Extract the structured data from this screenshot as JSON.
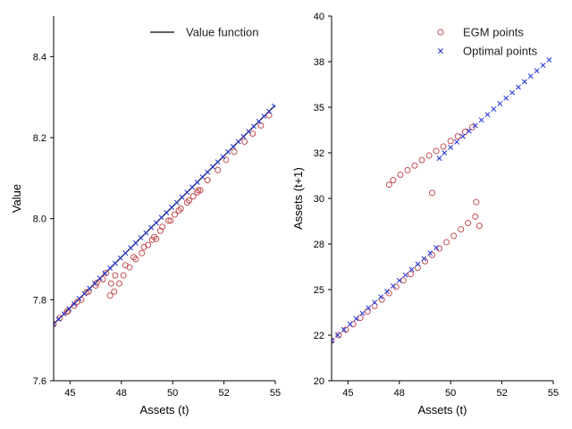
{
  "chart_data": [
    {
      "type": "line",
      "xlabel": "Assets (t)",
      "ylabel": "Value",
      "xlim": [
        44.2,
        55
      ],
      "ylim": [
        7.6,
        8.5
      ],
      "xticks": [
        "45",
        "48",
        "50",
        "52",
        "55"
      ],
      "xtick_values": [
        45,
        47.5,
        50,
        52.5,
        55
      ],
      "yticks": [
        "7.6",
        "7.8",
        "8.0",
        "8.2",
        "8.4"
      ],
      "ytick_values": [
        7.6,
        7.8,
        8.0,
        8.2,
        8.4
      ],
      "legend_position": "top-right",
      "series": [
        {
          "name": "Value function",
          "kind": "line",
          "color": "#000000",
          "x": [
            44.2,
            55
          ],
          "y": [
            7.74,
            8.28
          ]
        },
        {
          "kind": "circle",
          "color": "#c44e52",
          "x": [
            44.2,
            44.5,
            44.85,
            45.2,
            45.55,
            45.9,
            46.25,
            46.6,
            46.95,
            47.0,
            47.15,
            47.4,
            47.6,
            47.9,
            48.2,
            48.5,
            48.8,
            49.1,
            49.2,
            49.5,
            49.8,
            50.1,
            50.4,
            50.7,
            51.0,
            51.2,
            51.35,
            44.9,
            45.35,
            45.8,
            46.3,
            46.75,
            47.2,
            47.7,
            48.1,
            48.6,
            49.0,
            49.4,
            49.9,
            50.3,
            50.8,
            51.25,
            51.7,
            52.2,
            52.6,
            53.0,
            53.5,
            53.9,
            54.3,
            54.7
          ],
          "y": [
            7.74,
            7.755,
            7.77,
            7.785,
            7.8,
            7.82,
            7.835,
            7.85,
            7.81,
            7.84,
            7.82,
            7.84,
            7.86,
            7.88,
            7.9,
            7.915,
            7.935,
            7.955,
            7.95,
            7.98,
            7.995,
            8.01,
            8.025,
            8.04,
            8.055,
            8.065,
            8.07,
            7.772,
            7.795,
            7.818,
            7.842,
            7.866,
            7.86,
            7.885,
            7.905,
            7.93,
            7.948,
            7.97,
            7.995,
            8.02,
            8.045,
            8.07,
            8.095,
            8.12,
            8.145,
            8.165,
            8.19,
            8.21,
            8.23,
            8.255
          ]
        },
        {
          "kind": "x",
          "color": "#2030d8",
          "x": [
            44.2,
            44.45,
            44.7,
            44.95,
            45.2,
            45.45,
            45.7,
            45.95,
            46.2,
            46.45,
            46.7,
            46.95,
            47.2,
            47.45,
            47.7,
            47.95,
            48.2,
            48.45,
            48.7,
            48.95,
            49.2,
            49.45,
            49.7,
            49.95,
            50.2,
            50.45,
            50.7,
            50.95,
            51.2,
            51.45,
            51.7,
            51.95,
            52.2,
            52.45,
            52.7,
            52.95,
            53.2,
            53.45,
            53.7,
            53.95,
            54.2,
            54.45,
            54.7,
            54.95
          ],
          "y": [
            7.74,
            7.752,
            7.765,
            7.778,
            7.79,
            7.803,
            7.815,
            7.828,
            7.84,
            7.853,
            7.865,
            7.878,
            7.89,
            7.903,
            7.915,
            7.928,
            7.94,
            7.953,
            7.965,
            7.978,
            7.99,
            8.003,
            8.015,
            8.028,
            8.04,
            8.053,
            8.065,
            8.078,
            8.09,
            8.103,
            8.115,
            8.128,
            8.14,
            8.153,
            8.165,
            8.178,
            8.19,
            8.203,
            8.215,
            8.228,
            8.24,
            8.253,
            8.265,
            8.278
          ]
        }
      ]
    },
    {
      "type": "scatter",
      "xlabel": "Assets (t)",
      "ylabel": "Assets (t+1)",
      "xlim": [
        44.2,
        55
      ],
      "ylim": [
        20,
        40
      ],
      "xticks": [
        "45",
        "48",
        "50",
        "52",
        "55"
      ],
      "xtick_values": [
        45,
        47.5,
        50,
        52.5,
        55
      ],
      "yticks": [
        "20",
        "22",
        "25",
        "28",
        "30",
        "32",
        "35",
        "38",
        "40"
      ],
      "ytick_values": [
        20,
        22.5,
        25,
        27.5,
        30,
        32.5,
        35,
        37.5,
        40
      ],
      "legend_position": "top-right",
      "series": [
        {
          "name": "EGM points",
          "kind": "circle",
          "color": "#c44e52",
          "x": [
            44.2,
            44.55,
            44.9,
            45.25,
            45.6,
            45.95,
            46.3,
            46.65,
            47.0,
            47.35,
            47.7,
            48.05,
            48.4,
            48.75,
            49.1,
            49.45,
            49.8,
            50.15,
            50.5,
            50.85,
            51.2,
            51.4,
            47.0,
            47.2,
            47.55,
            47.9,
            48.25,
            48.6,
            48.95,
            49.3,
            49.65,
            50.0,
            50.35,
            50.7,
            51.05,
            49.1,
            51.25
          ],
          "y": [
            22.2,
            22.5,
            22.8,
            23.1,
            23.45,
            23.8,
            24.1,
            24.45,
            24.8,
            25.15,
            25.5,
            25.85,
            26.2,
            26.55,
            26.9,
            27.25,
            27.6,
            27.95,
            28.3,
            28.65,
            29.0,
            28.5,
            30.75,
            31.0,
            31.3,
            31.55,
            31.8,
            32.1,
            32.35,
            32.6,
            32.85,
            33.15,
            33.4,
            33.65,
            33.9,
            30.3,
            29.8
          ]
        },
        {
          "name": "Optimal points",
          "kind": "x",
          "color": "#2030d8",
          "x": [
            44.2,
            44.5,
            44.8,
            45.1,
            45.4,
            45.7,
            46.0,
            46.3,
            46.6,
            46.9,
            47.2,
            47.5,
            47.8,
            48.1,
            48.4,
            48.7,
            49.0,
            49.3,
            49.45,
            49.7,
            50.0,
            50.3,
            50.6,
            50.9,
            51.2,
            51.5,
            51.8,
            52.1,
            52.4,
            52.7,
            53.0,
            53.3,
            53.6,
            53.9,
            54.2,
            54.5,
            54.8
          ],
          "y": [
            22.2,
            22.5,
            22.8,
            23.1,
            23.4,
            23.7,
            24.0,
            24.3,
            24.6,
            24.9,
            25.2,
            25.5,
            25.8,
            26.1,
            26.4,
            26.7,
            27.0,
            27.3,
            32.2,
            32.5,
            32.8,
            33.1,
            33.4,
            33.7,
            34.0,
            34.3,
            34.6,
            34.9,
            35.2,
            35.5,
            35.8,
            36.1,
            36.4,
            36.7,
            37.0,
            37.3,
            37.6
          ]
        }
      ]
    }
  ]
}
